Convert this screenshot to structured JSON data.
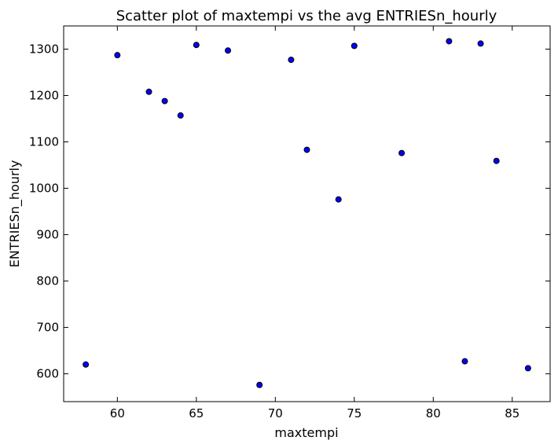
{
  "chart_data": {
    "type": "scatter",
    "title": "Scatter plot of maxtempi vs the avg ENTRIESn_hourly",
    "xlabel": "maxtempi",
    "ylabel": "ENTRIESn_hourly",
    "xlim": [
      56.6,
      87.4
    ],
    "ylim": [
      540,
      1350
    ],
    "xticks": [
      60,
      65,
      70,
      75,
      80,
      85
    ],
    "yticks": [
      600,
      700,
      800,
      900,
      1000,
      1100,
      1200,
      1300
    ],
    "grid": false,
    "marker_color": "#0000ff",
    "marker_edge_color": "#000000",
    "points": [
      {
        "x": 58,
        "y": 620
      },
      {
        "x": 60,
        "y": 1287
      },
      {
        "x": 62,
        "y": 1208
      },
      {
        "x": 63,
        "y": 1188
      },
      {
        "x": 64,
        "y": 1157
      },
      {
        "x": 65,
        "y": 1309
      },
      {
        "x": 67,
        "y": 1297
      },
      {
        "x": 69,
        "y": 576
      },
      {
        "x": 71,
        "y": 1277
      },
      {
        "x": 72,
        "y": 1083
      },
      {
        "x": 74,
        "y": 976
      },
      {
        "x": 75,
        "y": 1307
      },
      {
        "x": 78,
        "y": 1076
      },
      {
        "x": 81,
        "y": 1317
      },
      {
        "x": 82,
        "y": 627
      },
      {
        "x": 83,
        "y": 1312
      },
      {
        "x": 84,
        "y": 1059
      },
      {
        "x": 86,
        "y": 612
      }
    ]
  }
}
